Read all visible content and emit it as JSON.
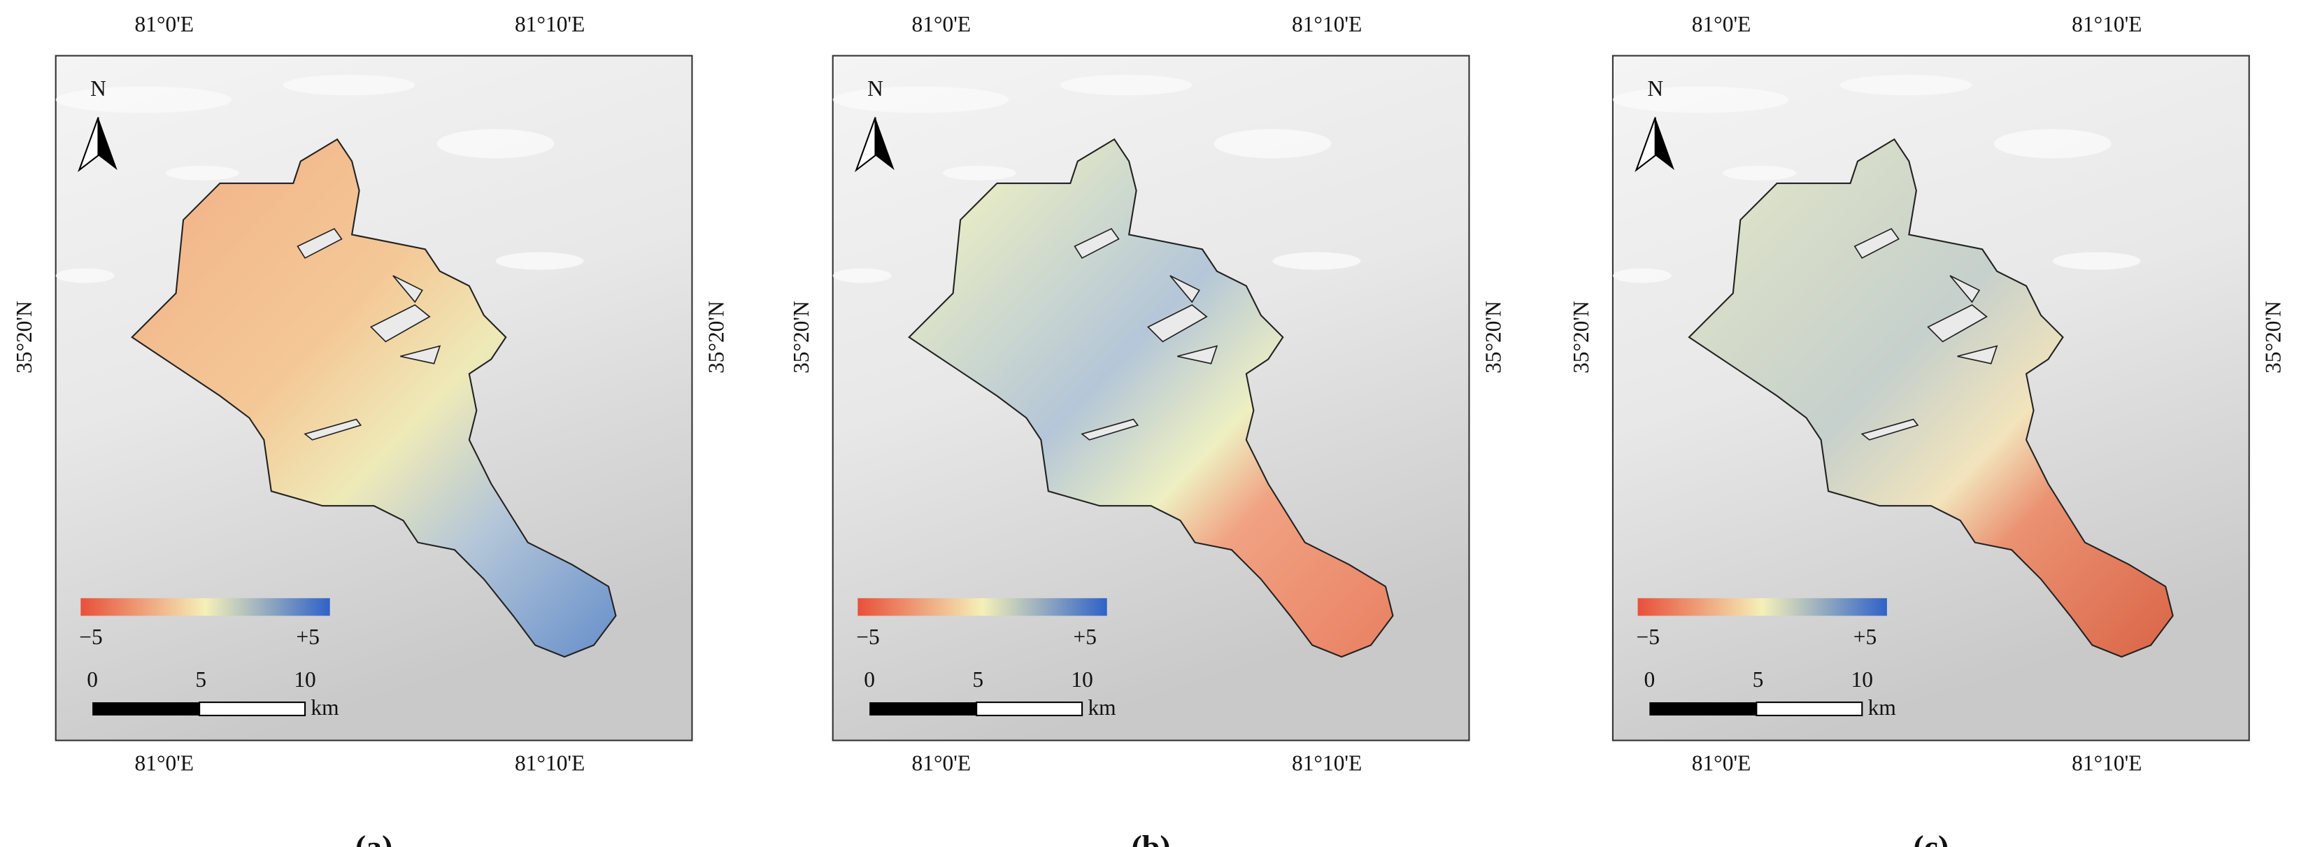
{
  "panels": [
    {
      "label": "(a)"
    },
    {
      "label": "(b)"
    },
    {
      "label": "(c)"
    }
  ],
  "longitude_labels": [
    "81°0'E",
    "81°10'E"
  ],
  "latitude_label": "35°20'N",
  "north": "N",
  "legend": {
    "min": "−5",
    "max": "+5"
  },
  "scale_bar": {
    "labels": [
      "0",
      "5",
      "10"
    ],
    "unit": "km"
  }
}
